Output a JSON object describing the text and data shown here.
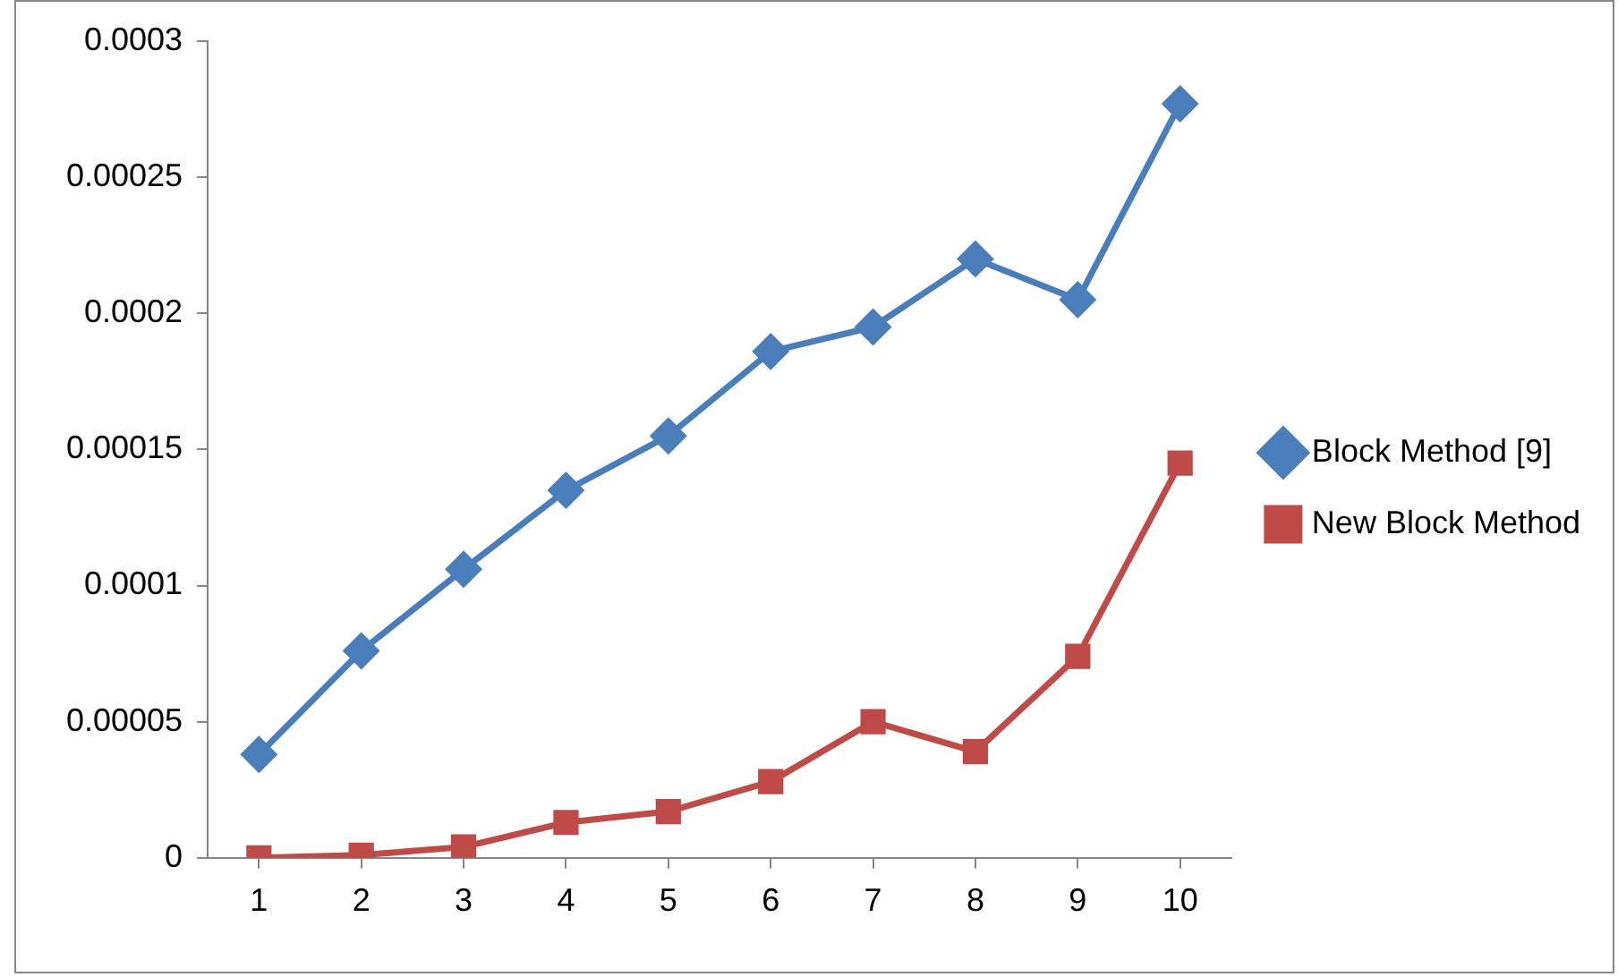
{
  "chart_data": {
    "type": "line",
    "categories": [
      "1",
      "2",
      "3",
      "4",
      "5",
      "6",
      "7",
      "8",
      "9",
      "10"
    ],
    "series": [
      {
        "name": "Block Method [9]",
        "color": "#4a7ebb",
        "marker": "diamond",
        "values": [
          3.8e-05,
          7.6e-05,
          0.000106,
          0.000135,
          0.000155,
          0.000186,
          0.000195,
          0.00022,
          0.000205,
          0.000277
        ]
      },
      {
        "name": "New Block Method",
        "color": "#be4b48",
        "marker": "square",
        "values": [
          0,
          1e-06,
          4e-06,
          1.3e-05,
          1.7e-05,
          2.8e-05,
          5e-05,
          3.9e-05,
          7.4e-05,
          0.000145
        ]
      }
    ],
    "ylim": [
      0,
      0.0003
    ],
    "yticks": [
      0,
      {
        "value": 5e-05,
        "label": "0.00005"
      },
      0.0001,
      0.00015,
      0.0002,
      0.00025,
      0.0003
    ],
    "grid": false,
    "legend": "right",
    "line_style": "solid"
  }
}
